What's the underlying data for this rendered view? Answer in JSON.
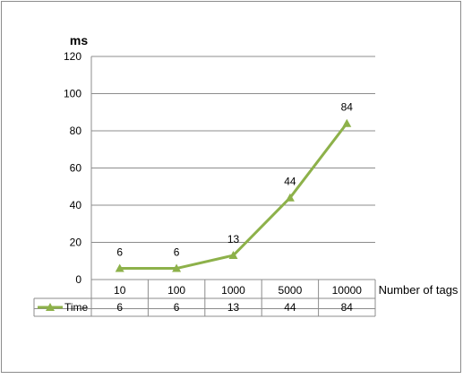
{
  "chart_data": {
    "type": "line",
    "ylabel": "ms",
    "xlabel": "Number of tags",
    "categories": [
      "10",
      "100",
      "1000",
      "5000",
      "10000"
    ],
    "ylim": [
      0,
      120
    ],
    "yticks": [
      0,
      20,
      40,
      60,
      80,
      100,
      120
    ],
    "grid": true,
    "legend_placement": "data table row",
    "series": [
      {
        "name": "Time",
        "values": [
          6,
          6,
          13,
          44,
          84
        ],
        "color": "#8db14a",
        "marker": "triangle"
      }
    ]
  }
}
